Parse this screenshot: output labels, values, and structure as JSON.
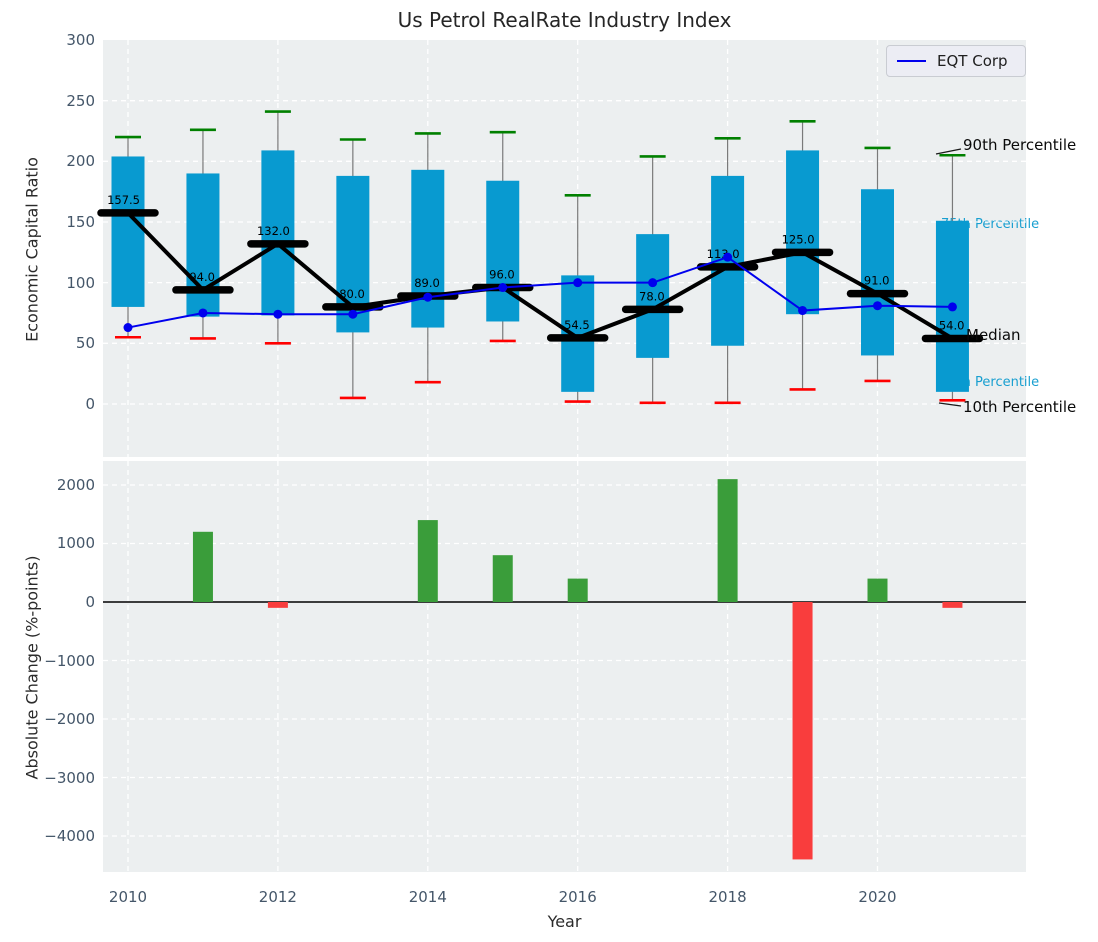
{
  "title": "Us Petrol RealRate Industry Index",
  "legend": {
    "label": "EQT Corp"
  },
  "top_axis": {
    "ylabel": "Economic Capital Ratio",
    "yticks": [
      300,
      250,
      200,
      150,
      100,
      50,
      0
    ]
  },
  "bottom_axis": {
    "ylabel": "Absolute Change (%-points)",
    "xlabel": "Year",
    "yticks": [
      2000,
      1000,
      0,
      -1000,
      -2000,
      -3000,
      -4000
    ],
    "xticks": [
      2010,
      2012,
      2014,
      2016,
      2018,
      2020
    ]
  },
  "annotations": {
    "p90_label": "90th Percentile",
    "p75_label": "75th Percentile",
    "median_label": "Median",
    "p25_label": "25th Percentile",
    "p10_label": "10th Percentile"
  },
  "colors": {
    "box": "#089ad0",
    "p90_cap": "#008000",
    "p10_cap": "#ff0000",
    "whisker": "#7a7a7a",
    "median_line": "#000000",
    "eqt_line": "#0000ee",
    "bar_positive": "#3a9d3a",
    "bar_negative": "#f93d3d",
    "plot_bg": "#eceff0",
    "grid": "#ffffff",
    "tick_label": "#445669",
    "annotation_cyan": "#189fd0"
  },
  "chart_data": [
    {
      "type": "boxplot-with-line",
      "title": "Us Petrol RealRate Industry Index",
      "ylabel": "Economic Capital Ratio",
      "xlabel": "Year",
      "legend_position": "upper right",
      "grid": true,
      "ylim": [
        -45,
        300
      ],
      "years": [
        2010,
        2011,
        2012,
        2013,
        2014,
        2015,
        2016,
        2017,
        2018,
        2019,
        2020,
        2021
      ],
      "p90": [
        220,
        226,
        241,
        218,
        223,
        224,
        172,
        204,
        219,
        233,
        211,
        205
      ],
      "p75": [
        204,
        190,
        209,
        188,
        193,
        184,
        106,
        140,
        188,
        209,
        177,
        151
      ],
      "median": [
        157.5,
        94.0,
        132.0,
        80.0,
        89.0,
        96.0,
        54.5,
        78.0,
        113.0,
        125.0,
        91.0,
        54.0
      ],
      "p25": [
        80,
        72,
        73,
        59,
        63,
        68,
        10,
        38,
        48,
        74,
        40,
        10
      ],
      "p10": [
        55,
        54,
        50,
        5,
        18,
        52,
        2,
        1,
        1,
        12,
        19,
        3
      ],
      "series": [
        {
          "name": "EQT Corp",
          "values": [
            63,
            75,
            74,
            74,
            88,
            96,
            100,
            100,
            121,
            77,
            81,
            80
          ]
        }
      ]
    },
    {
      "type": "bar",
      "ylabel": "Absolute Change (%-points)",
      "xlabel": "Year",
      "grid": true,
      "ylim": [
        -4615,
        2410
      ],
      "years": [
        2010,
        2011,
        2012,
        2013,
        2014,
        2015,
        2016,
        2017,
        2018,
        2019,
        2020,
        2021
      ],
      "values": [
        null,
        1200,
        -100,
        0,
        1400,
        800,
        400,
        0,
        2100,
        -4400,
        400,
        -100
      ]
    }
  ]
}
